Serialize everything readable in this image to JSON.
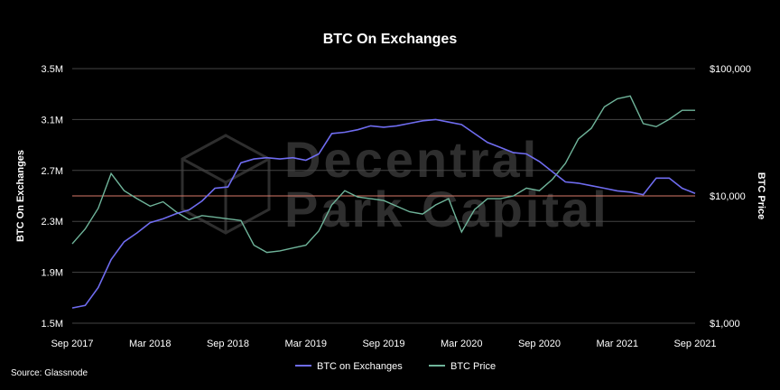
{
  "colors": {
    "background": "#000000",
    "grid": "#444444",
    "exchanges_line": "#6f6cf0",
    "price_line": "#6fb49a",
    "reference_line": "#d97a6a",
    "watermark": "#2e2e2e"
  },
  "watermark": {
    "line1": "Decentral",
    "line2": "Park Capital"
  },
  "source": "Source: Glassnode",
  "chart_data": {
    "type": "line",
    "title": "BTC On Exchanges",
    "x": [
      "2017-09",
      "2017-10",
      "2017-11",
      "2017-12",
      "2018-01",
      "2018-02",
      "2018-03",
      "2018-04",
      "2018-05",
      "2018-06",
      "2018-07",
      "2018-08",
      "2018-09",
      "2018-10",
      "2018-11",
      "2018-12",
      "2019-01",
      "2019-02",
      "2019-03",
      "2019-04",
      "2019-05",
      "2019-06",
      "2019-07",
      "2019-08",
      "2019-09",
      "2019-10",
      "2019-11",
      "2019-12",
      "2020-01",
      "2020-02",
      "2020-03",
      "2020-04",
      "2020-05",
      "2020-06",
      "2020-07",
      "2020-08",
      "2020-09",
      "2020-10",
      "2020-11",
      "2020-12",
      "2021-01",
      "2021-02",
      "2021-03",
      "2021-04",
      "2021-05",
      "2021-06",
      "2021-07",
      "2021-08",
      "2021-09"
    ],
    "x_tick_labels": [
      "Sep 2017",
      "Mar 2018",
      "Sep 2018",
      "Mar 2019",
      "Sep 2019",
      "Mar 2020",
      "Sep 2020",
      "Mar 2021",
      "Sep 2021"
    ],
    "ylabel": "BTC On Exchanges",
    "ylim": [
      1500000,
      3500000
    ],
    "y_tick_labels": [
      "3.5M",
      "3.1M",
      "2.7M",
      "2.3M",
      "1.9M",
      "1.5M"
    ],
    "y_ticks": [
      3500000,
      3100000,
      2700000,
      2300000,
      1900000,
      1500000
    ],
    "y2label": "BTC Price",
    "y2lim": [
      1000,
      200000
    ],
    "y2scale": "log",
    "y2_tick_labels": [
      "$100,000",
      "$10,000",
      "$1,000"
    ],
    "y2_ticks": [
      100000,
      10000,
      1000
    ],
    "reference_line_y2": 10000,
    "grid": true,
    "legend_position": "bottom-center",
    "series": [
      {
        "name": "BTC on Exchanges",
        "axis": "left",
        "values": [
          1620000,
          1640000,
          1780000,
          2000000,
          2140000,
          2210000,
          2290000,
          2320000,
          2360000,
          2390000,
          2460000,
          2560000,
          2570000,
          2760000,
          2790000,
          2800000,
          2790000,
          2800000,
          2780000,
          2830000,
          2990000,
          3000000,
          3020000,
          3050000,
          3040000,
          3050000,
          3070000,
          3090000,
          3100000,
          3080000,
          3060000,
          2990000,
          2920000,
          2880000,
          2840000,
          2830000,
          2770000,
          2690000,
          2610000,
          2600000,
          2580000,
          2560000,
          2540000,
          2530000,
          2510000,
          2640000,
          2640000,
          2560000,
          2520000
        ]
      },
      {
        "name": "BTC Price",
        "axis": "right",
        "values": [
          4200,
          5500,
          8000,
          15000,
          11000,
          9500,
          8300,
          9000,
          7500,
          6500,
          7000,
          6800,
          6600,
          6400,
          4100,
          3600,
          3700,
          3900,
          4100,
          5300,
          8500,
          11000,
          9800,
          9500,
          9200,
          8300,
          7500,
          7200,
          8500,
          9500,
          5200,
          7800,
          9500,
          9500,
          10000,
          11500,
          11000,
          13500,
          18000,
          28000,
          34000,
          50000,
          58000,
          61000,
          37000,
          35000,
          40000,
          47000,
          47000
        ]
      }
    ]
  }
}
